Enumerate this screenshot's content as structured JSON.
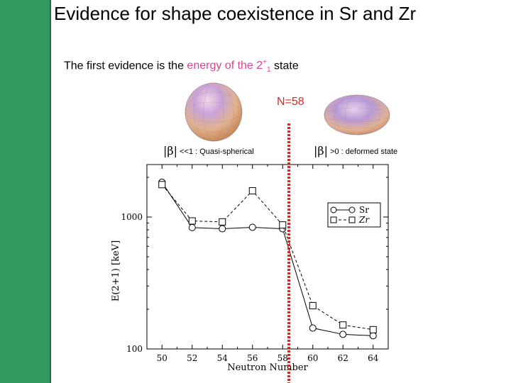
{
  "slide": {
    "title": "Evidence for shape coexistence in Sr and Zr",
    "subtitle_pre": "The first evidence is the ",
    "subtitle_hl": "energy of the 2",
    "subtitle_sup": "+",
    "subtitle_sub": "1",
    "subtitle_post": " state",
    "n58_label": "N=58",
    "beta_left": "<<1 : Quasi-spherical",
    "beta_right": ">0 : deformed state",
    "beta_symbol": "|β|",
    "colors": {
      "sidebar": "#2f9a5c",
      "highlight": "#d6458f",
      "marker_line": "#d62828"
    },
    "icons": [
      "spherical-nucleus-icon",
      "deformed-nucleus-icon"
    ]
  },
  "chart_data": {
    "type": "line",
    "xlabel": "Neutron Number",
    "ylabel": "E(2+1) [keV]",
    "y_scale": "log",
    "ylim": [
      100,
      2500
    ],
    "xlim": [
      49,
      65
    ],
    "x": [
      50,
      52,
      54,
      56,
      58,
      60,
      62,
      64
    ],
    "xticks": [
      "50",
      "52",
      "54",
      "56",
      "58",
      "60",
      "62",
      "64"
    ],
    "yticks": [
      100,
      1000
    ],
    "ytick_labels": [
      "100",
      "1000"
    ],
    "legend_position": "right",
    "series": [
      {
        "name": "Sr",
        "marker": "circle",
        "dash": "solid",
        "values": [
          1837,
          832,
          815,
          836,
          815,
          144,
          129,
          126
        ]
      },
      {
        "name": "Zr",
        "marker": "square",
        "dash": "dashed",
        "values": [
          1761,
          934,
          919,
          1582,
          871,
          213,
          152,
          140
        ]
      }
    ],
    "annotation": {
      "type": "vertical-dotted-line",
      "x": 58
    }
  }
}
